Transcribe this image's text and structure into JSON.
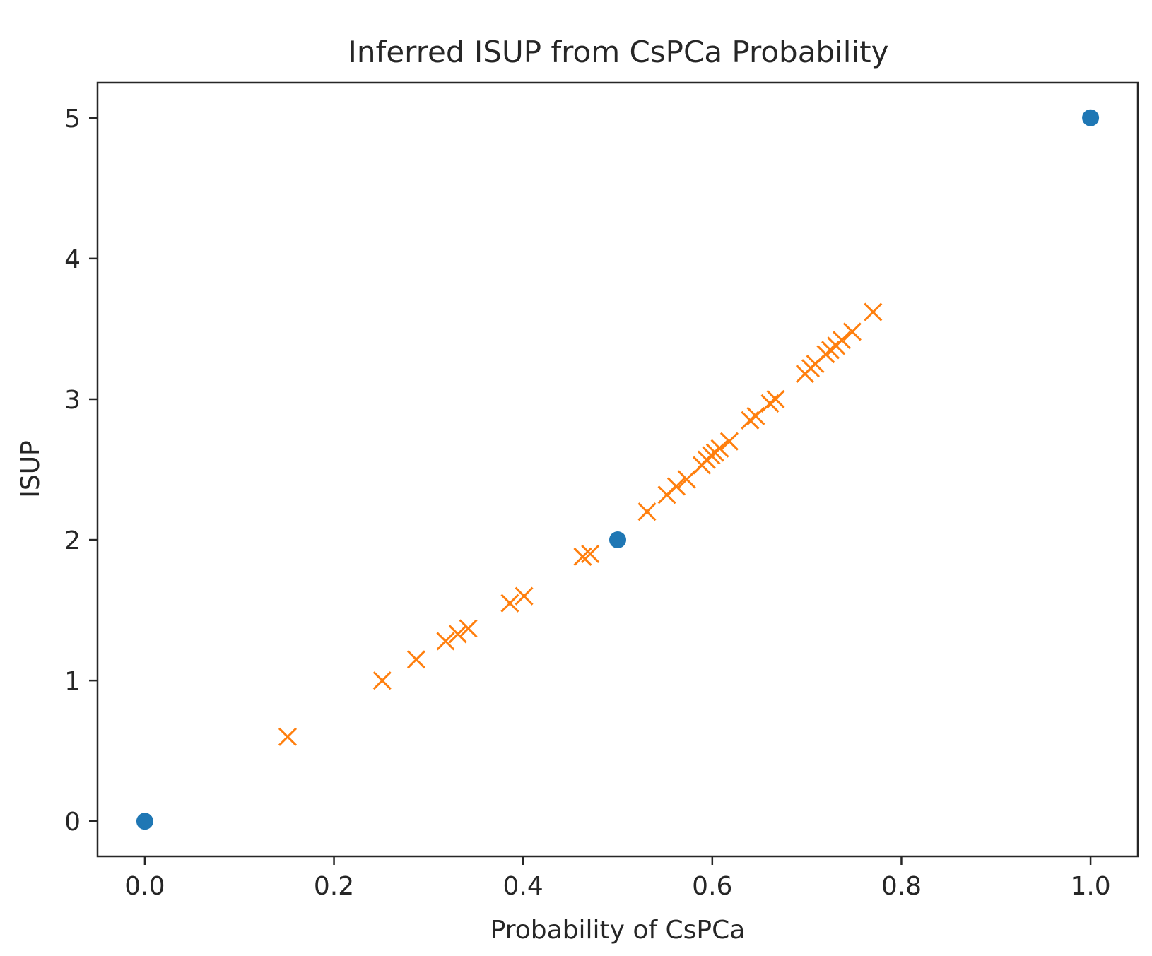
{
  "chart_data": {
    "type": "scatter",
    "title": "Inferred ISUP from CsPCa Probability",
    "xlabel": "Probability of CsPCa",
    "ylabel": "ISUP",
    "xlim": [
      -0.05,
      1.05
    ],
    "ylim": [
      -0.25,
      5.25
    ],
    "xticks": [
      0.0,
      0.2,
      0.4,
      0.6,
      0.8,
      1.0
    ],
    "xtick_labels": [
      "0.0",
      "0.2",
      "0.4",
      "0.6",
      "0.8",
      "1.0"
    ],
    "yticks": [
      0,
      1,
      2,
      3,
      4,
      5
    ],
    "ytick_labels": [
      "0",
      "1",
      "2",
      "3",
      "4",
      "5"
    ],
    "grid": false,
    "legend": "none",
    "series": [
      {
        "marker": "circle",
        "color": "#1f77b4",
        "points": [
          [
            0.0,
            0.0
          ],
          [
            0.5,
            2.0
          ],
          [
            1.0,
            5.0
          ]
        ]
      },
      {
        "marker": "x",
        "color": "#ff7f0e",
        "points": [
          [
            0.151,
            0.6
          ],
          [
            0.251,
            1.0
          ],
          [
            0.287,
            1.15
          ],
          [
            0.318,
            1.28
          ],
          [
            0.331,
            1.33
          ],
          [
            0.342,
            1.37
          ],
          [
            0.386,
            1.55
          ],
          [
            0.401,
            1.6
          ],
          [
            0.463,
            1.88
          ],
          [
            0.471,
            1.9
          ],
          [
            0.531,
            2.2
          ],
          [
            0.552,
            2.32
          ],
          [
            0.562,
            2.38
          ],
          [
            0.573,
            2.43
          ],
          [
            0.589,
            2.53
          ],
          [
            0.594,
            2.57
          ],
          [
            0.599,
            2.6
          ],
          [
            0.603,
            2.62
          ],
          [
            0.608,
            2.65
          ],
          [
            0.618,
            2.7
          ],
          [
            0.64,
            2.85
          ],
          [
            0.646,
            2.88
          ],
          [
            0.661,
            2.97
          ],
          [
            0.667,
            3.0
          ],
          [
            0.698,
            3.18
          ],
          [
            0.704,
            3.22
          ],
          [
            0.709,
            3.25
          ],
          [
            0.72,
            3.32
          ],
          [
            0.725,
            3.35
          ],
          [
            0.731,
            3.38
          ],
          [
            0.737,
            3.42
          ],
          [
            0.748,
            3.48
          ],
          [
            0.77,
            3.62
          ]
        ]
      }
    ]
  }
}
